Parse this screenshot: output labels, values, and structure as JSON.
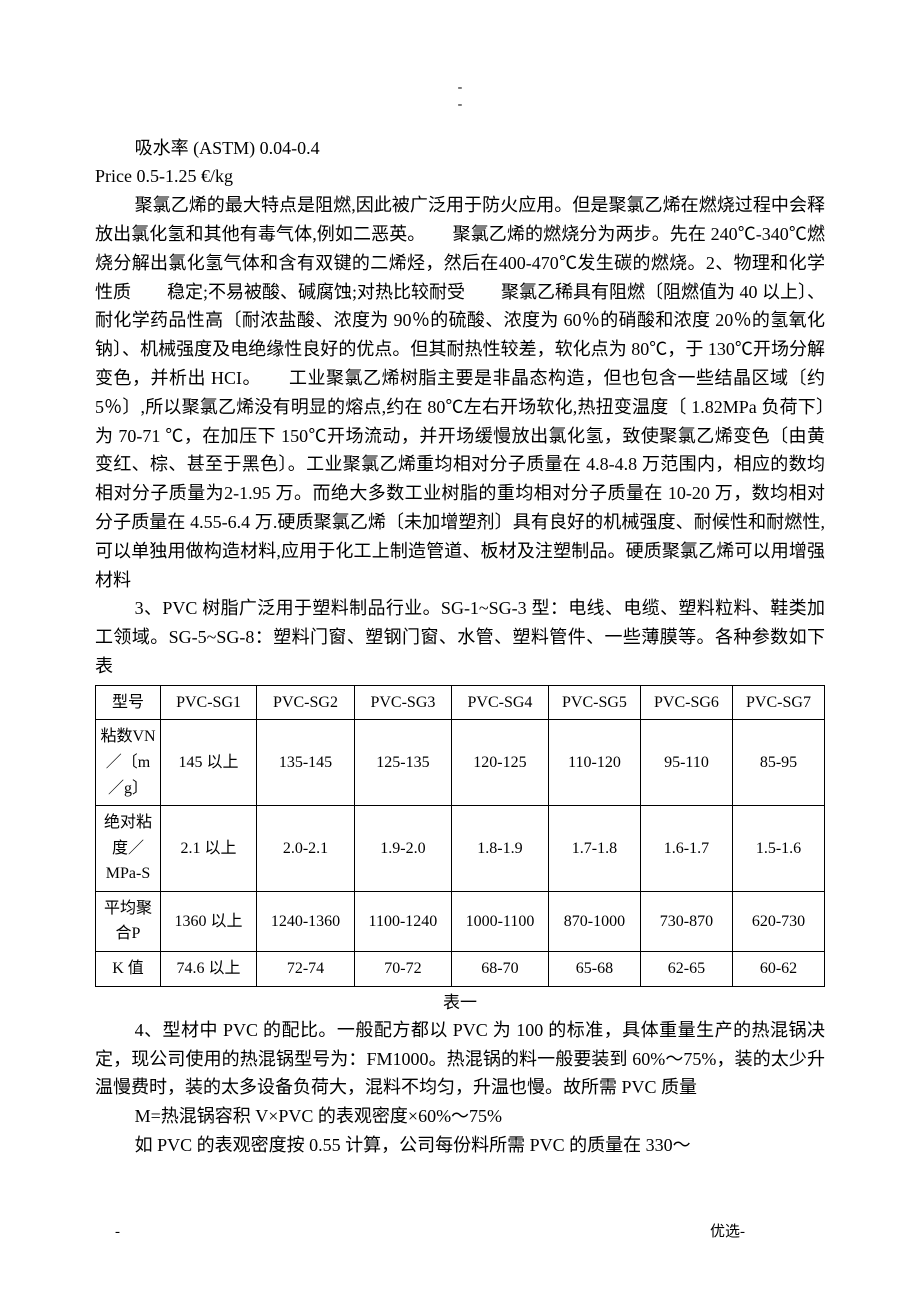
{
  "top_marks": {
    "a": "-",
    "b": "-"
  },
  "line1": "吸水率 (ASTM) 0.04-0.4",
  "line2": "Price 0.5-1.25 €/kg",
  "para1": "聚氯乙烯的最大特点是阻燃,因此被广泛用于防火应用。但是聚氯乙烯在燃烧过程中会释放出氯化氢和其他有毒气体,例如二恶英。　　聚氯乙烯的燃烧分为两步。先在 240℃-340℃燃烧分解出氯化氢气体和含有双键的二烯烃，然后在400-470℃发生碳的燃烧。2、物理和化学性质　　稳定;不易被酸、碱腐蚀;对热比较耐受　　聚氯乙稀具有阻燃〔阻燃值为 40 以上〕、耐化学药品性高〔耐浓盐酸、浓度为 90％的硫酸、浓度为 60％的硝酸和浓度 20％的氢氧化钠〕、机械强度及电绝缘性良好的优点。但其耐热性较差，软化点为 80℃，于 130℃开场分解变色，并析出 HCI。　　工业聚氯乙烯树脂主要是非晶态构造，但也包含一些结晶区域〔约 5％〕,所以聚氯乙烯没有明显的熔点,约在 80℃左右开场软化,热扭变温度〔 1.82MPa 负荷下〕为 70-71 ℃，在加压下 150℃开场流动，并开场缓慢放出氯化氢，致使聚氯乙烯变色〔由黄变红、棕、甚至于黑色〕。工业聚氯乙烯重均相对分子质量在 4.8-4.8 万范围内，相应的数均相对分子质量为2-1.95 万。而绝大多数工业树脂的重均相对分子质量在 10-20 万，数均相对分子质量在 4.55-6.4 万.硬质聚氯乙烯〔未加增塑剂〕具有良好的机械强度、耐候性和耐燃性,可以单独用做构造材料,应用于化工上制造管道、板材及注塑制品。硬质聚氯乙烯可以用增强材料",
  "para2": "3、PVC 树脂广泛用于塑料制品行业。SG-1~SG-3 型：电线、电缆、塑料粒料、鞋类加工领域。SG-5~SG-8：塑料门窗、塑钢门窗、水管、塑料管件、一些薄膜等。各种参数如下表",
  "table": {
    "columns": [
      "型号",
      "PVC-SG1",
      "PVC-SG2",
      "PVC-SG3",
      "PVC-SG4",
      "PVC-SG5",
      "PVC-SG6",
      "PVC-SG7"
    ],
    "rows": [
      {
        "label": "粘数VN／〔m／g〕",
        "cells": [
          "145 以上",
          "135-145",
          "125-135",
          "120-125",
          "110-120",
          "95-110",
          "85-95"
        ]
      },
      {
        "label": "绝对粘度／MPa-S",
        "cells": [
          "2.1 以上",
          "2.0-2.1",
          "1.9-2.0",
          "1.8-1.9",
          "1.7-1.8",
          "1.6-1.7",
          "1.5-1.6"
        ]
      },
      {
        "label": "平均聚合P",
        "cells": [
          "1360 以上",
          "1240-1360",
          "1100-1240",
          "1000-1100",
          "870-1000",
          "730-870",
          "620-730"
        ]
      },
      {
        "label": "K 值",
        "cells": [
          "74.6 以上",
          "72-74",
          "70-72",
          "68-70",
          "65-68",
          "62-65",
          "60-62"
        ]
      }
    ],
    "caption": "表一"
  },
  "para3": "4、型材中 PVC 的配比。一般配方都以 PVC 为 100 的标准，具体重量生产的热混锅决定，现公司使用的热混锅型号为：FM1000。热混锅的料一般要装到 60%～75%，装的太少升温慢费时，装的太多设备负荷大，混料不均匀，升温也慢。故所需 PVC 质量",
  "para4": "M=热混锅容积 V×PVC 的表观密度×60%～75%",
  "para5": "如 PVC 的表观密度按 0.55 计算，公司每份料所需 PVC 的质量在 330～",
  "footer": {
    "left": "-",
    "right": "优选-"
  },
  "colors": {
    "text": "#000000",
    "background": "#ffffff",
    "border": "#000000"
  }
}
